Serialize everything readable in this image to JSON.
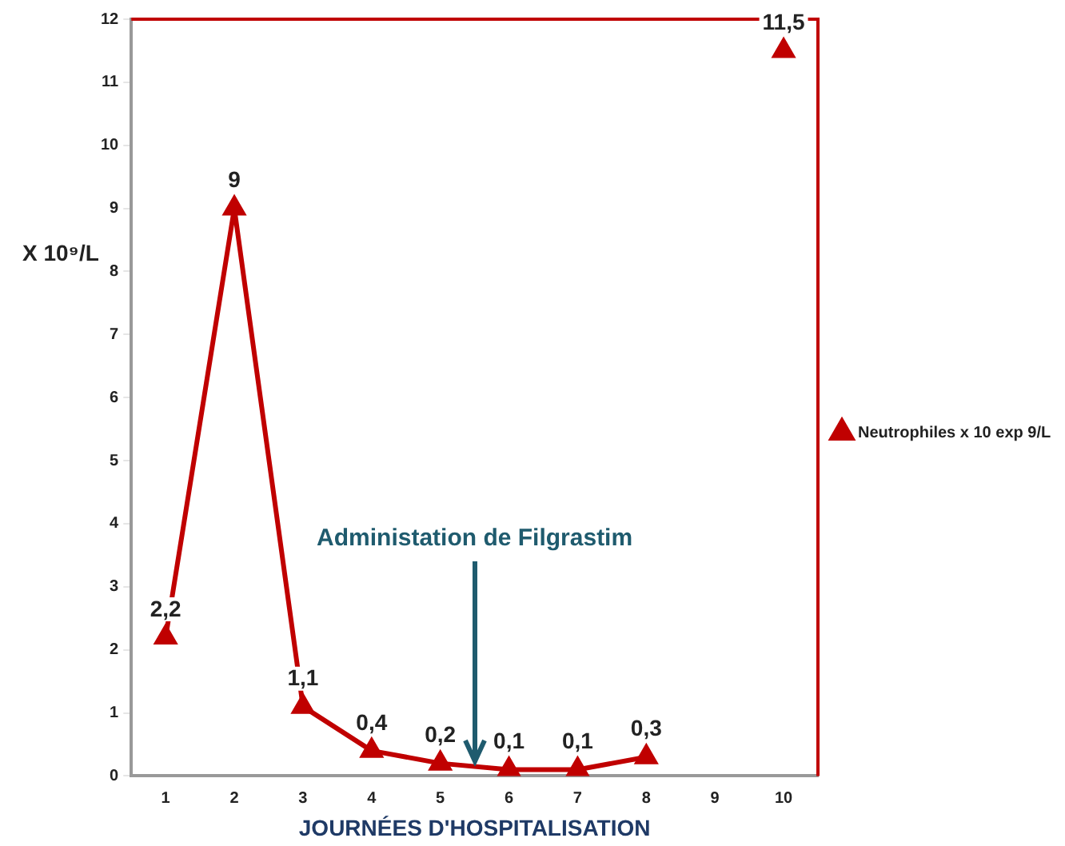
{
  "chart_data": {
    "type": "line",
    "xlabel": "JOURNÉES D'HOSPITALISATION",
    "ylabel": "X 10⁹/L",
    "x": [
      1,
      2,
      3,
      4,
      5,
      6,
      7,
      8,
      9,
      10
    ],
    "xlim": [
      0.5,
      10.5
    ],
    "xticks": [
      1,
      2,
      3,
      4,
      5,
      6,
      7,
      8,
      9,
      10
    ],
    "ylim": [
      0,
      12
    ],
    "yticks": [
      0,
      1,
      2,
      3,
      4,
      5,
      6,
      7,
      8,
      9,
      10,
      11,
      12
    ],
    "series": [
      {
        "name": "Neutrophiles x 10 exp 9/L",
        "color": "#c00000",
        "values": [
          2.2,
          9,
          1.1,
          0.4,
          0.2,
          0.1,
          0.1,
          0.3,
          null,
          11.5
        ],
        "value_labels": [
          "2,2",
          "9",
          "1,1",
          "0,4",
          "0,2",
          "0,1",
          "0,1",
          "0,3",
          null,
          "11,5"
        ]
      }
    ],
    "annotations": [
      {
        "text": "Administation de Filgrastim",
        "x": 5.5,
        "y": 0.15
      }
    ],
    "marker": "triangle",
    "line_style": "solid",
    "grid": false,
    "legend": "right"
  }
}
